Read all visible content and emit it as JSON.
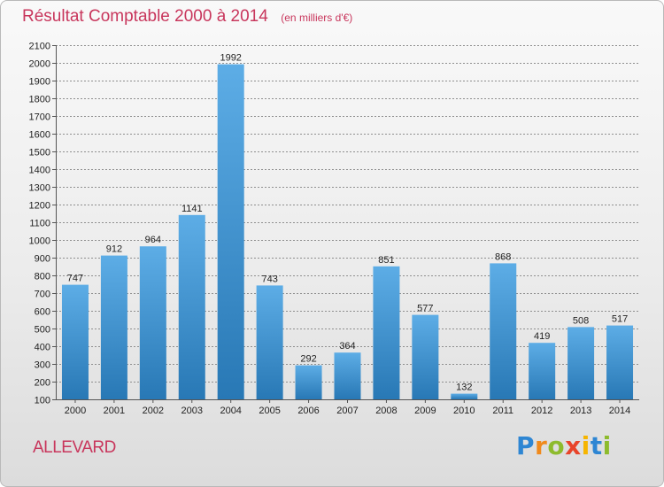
{
  "title": "Résultat Comptable 2000 à 2014",
  "subtitle": "(en milliers d'€)",
  "town": "ALLEVARD",
  "logo": {
    "letters": [
      "P",
      "r",
      "o",
      "x",
      "i",
      "t",
      "i"
    ],
    "colors": [
      "#2e86d3",
      "#f08a1c",
      "#8dbb2d",
      "#e8442a",
      "#f6b500",
      "#2e86d3",
      "#8dbb2d"
    ]
  },
  "colors": {
    "title": "#c8365c",
    "bar_top": "#5dade6",
    "bar_bottom": "#2878b5",
    "grid": "#8f8f8f"
  },
  "chart_data": {
    "type": "bar",
    "title": "Résultat Comptable 2000 à 2014",
    "subtitle": "(en milliers d'€)",
    "xlabel": "",
    "ylabel": "",
    "categories": [
      "2000",
      "2001",
      "2002",
      "2003",
      "2004",
      "2005",
      "2006",
      "2007",
      "2008",
      "2009",
      "2010",
      "2011",
      "2012",
      "2013",
      "2014"
    ],
    "values": [
      747,
      912,
      964,
      1141,
      1992,
      743,
      292,
      364,
      851,
      577,
      132,
      868,
      419,
      508,
      517
    ],
    "ylim": [
      100,
      2100
    ],
    "yticks": [
      100,
      200,
      300,
      400,
      500,
      600,
      700,
      800,
      900,
      1000,
      1100,
      1200,
      1300,
      1400,
      1500,
      1600,
      1700,
      1800,
      1900,
      2000,
      2100
    ],
    "grid": true,
    "data_labels": true
  }
}
